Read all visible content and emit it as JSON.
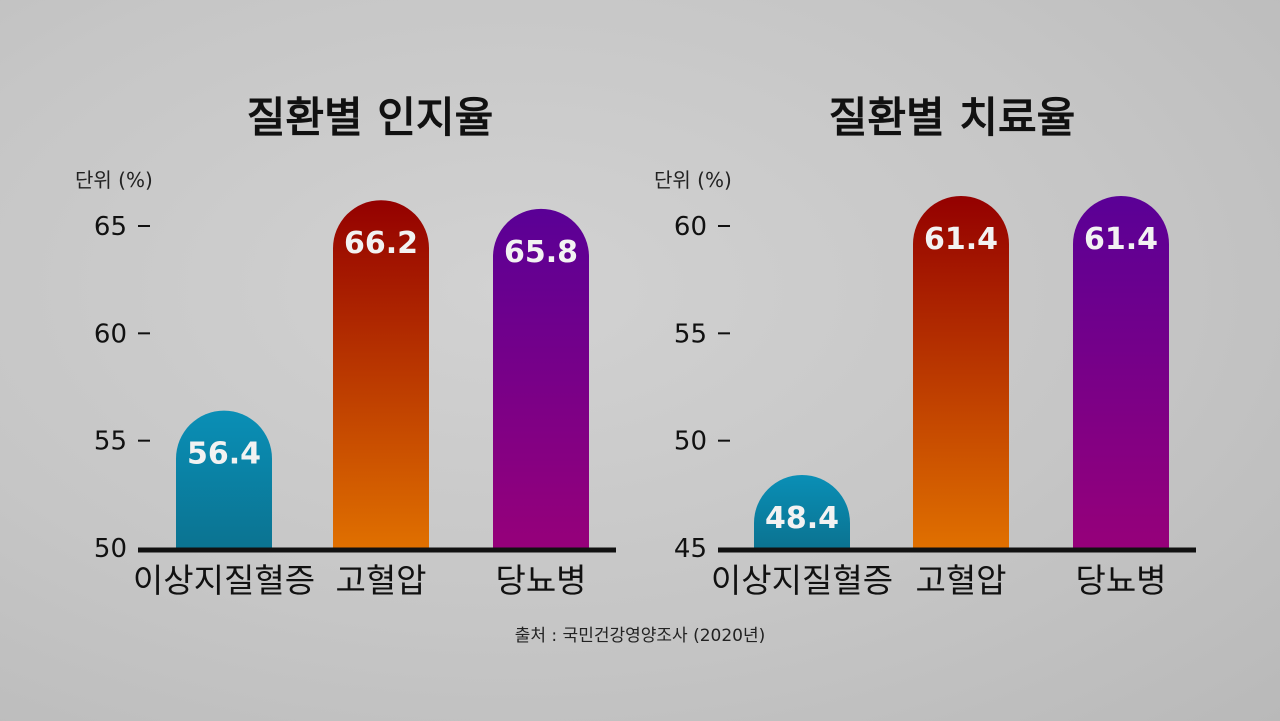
{
  "source": "출처 : 국민건강영양조사 (2020년)",
  "colors": {
    "blue": [
      "#0a8fb6",
      "#0b7391"
    ],
    "red": [
      "#940000",
      "#e07000"
    ],
    "purple": [
      "#5a0096",
      "#96007a"
    ]
  },
  "chart_data": [
    {
      "type": "bar",
      "title": "질환별 인지율",
      "unit_label": "단위 (%)",
      "categories": [
        "이상지질혈증",
        "고혈압",
        "당뇨병"
      ],
      "values": [
        56.4,
        66.2,
        65.8
      ],
      "value_labels": [
        "56.4",
        "66.2",
        "65.8"
      ],
      "ylim": [
        50,
        65
      ],
      "yticks": [
        50,
        55,
        60,
        65
      ],
      "ytick_labels": [
        "50",
        "55",
        "60",
        "65"
      ],
      "bar_colors": [
        "blue",
        "red",
        "purple"
      ]
    },
    {
      "type": "bar",
      "title": "질환별 치료율",
      "unit_label": "단위 (%)",
      "categories": [
        "이상지질혈증",
        "고혈압",
        "당뇨병"
      ],
      "values": [
        48.4,
        61.4,
        61.4
      ],
      "value_labels": [
        "48.4",
        "61.4",
        "61.4"
      ],
      "ylim": [
        45,
        60
      ],
      "yticks": [
        45,
        50,
        55,
        60
      ],
      "ytick_labels": [
        "45",
        "50",
        "55",
        "60"
      ],
      "bar_colors": [
        "blue",
        "red",
        "purple"
      ]
    }
  ]
}
